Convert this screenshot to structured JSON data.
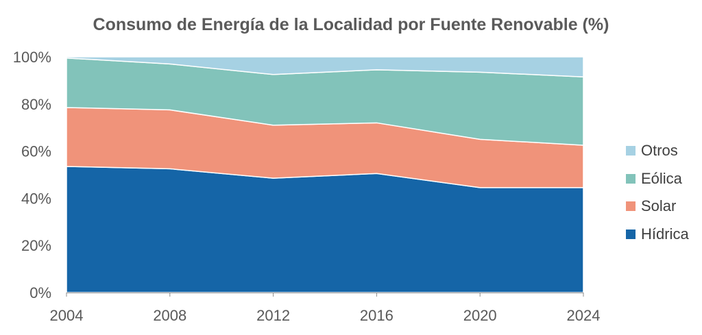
{
  "chart_data": {
    "type": "area",
    "stacked": true,
    "title": "Consumo de Energía de la Localidad por Fuente Renovable (%)",
    "xlabel": "",
    "ylabel": "",
    "x": [
      2004,
      2008,
      2012,
      2016,
      2020,
      2024
    ],
    "x_ticks": [
      "2004",
      "2008",
      "2012",
      "2016",
      "2020",
      "2024"
    ],
    "y_ticks": [
      "0%",
      "20%",
      "40%",
      "60%",
      "80%",
      "100%"
    ],
    "ylim": [
      0,
      100
    ],
    "series": [
      {
        "name": "Hídrica",
        "color": "#1565a7",
        "values": [
          53.5,
          52.5,
          48.5,
          50.5,
          44.5,
          44.5
        ]
      },
      {
        "name": "Solar",
        "color": "#f0937a",
        "values": [
          25.0,
          25.0,
          22.5,
          21.5,
          20.5,
          18.0
        ]
      },
      {
        "name": "Eólica",
        "color": "#82c3ba",
        "values": [
          21.0,
          19.5,
          21.5,
          22.5,
          28.5,
          29.0
        ]
      },
      {
        "name": "Otros",
        "color": "#a6d1e3",
        "values": [
          0.5,
          3.0,
          7.5,
          5.5,
          6.5,
          8.5
        ]
      }
    ],
    "legend_position": "right",
    "legend_order": [
      "Otros",
      "Eólica",
      "Solar",
      "Hídrica"
    ],
    "grid": false
  }
}
